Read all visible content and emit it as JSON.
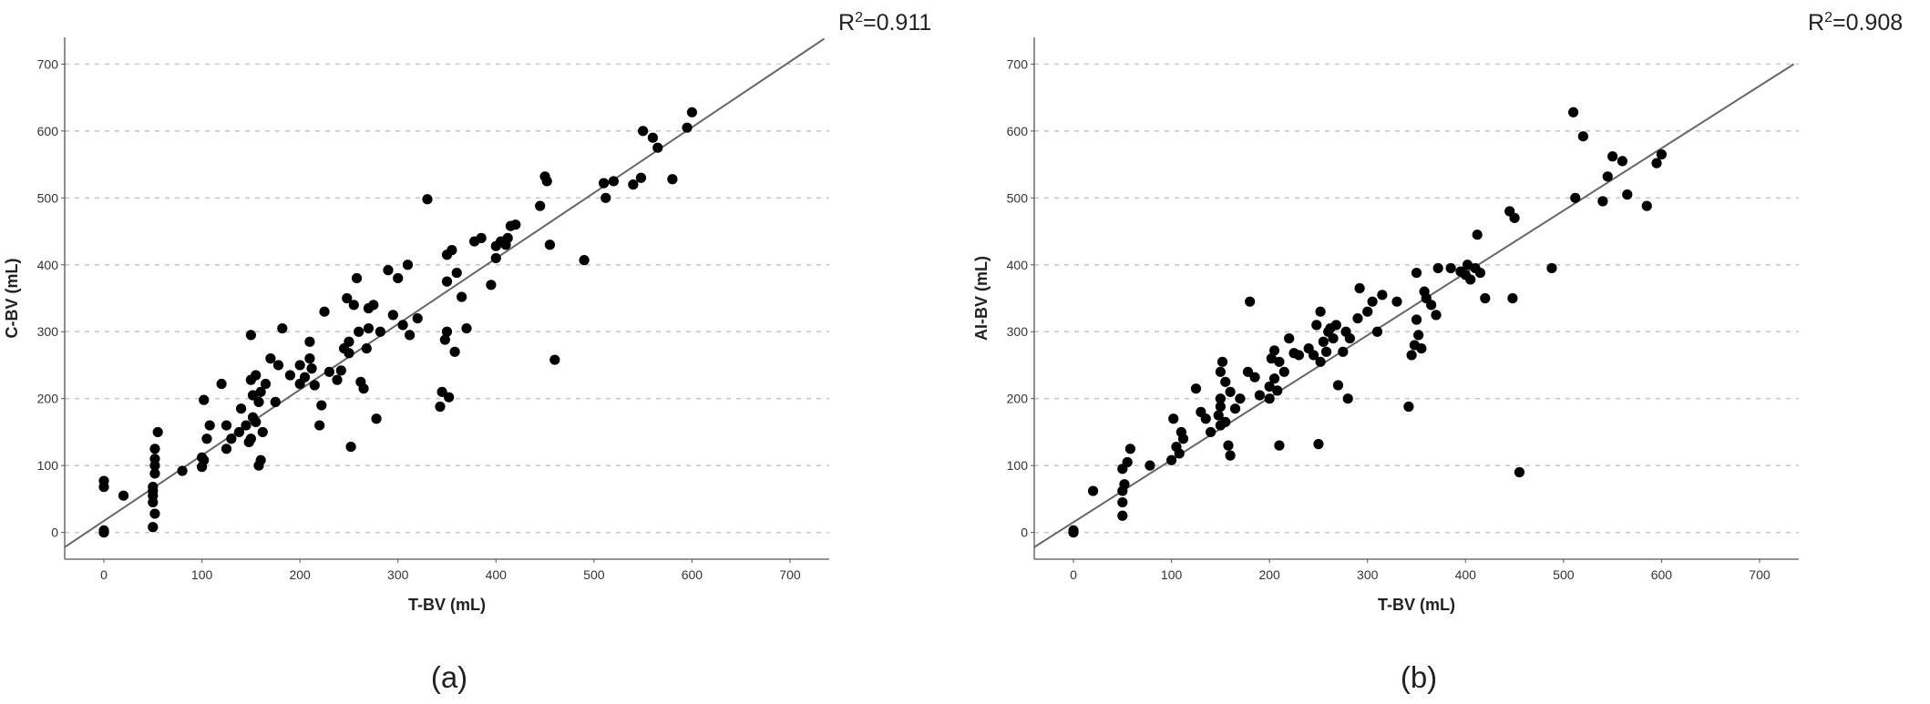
{
  "chart_data": [
    {
      "type": "scatter",
      "panel_label": "(a)",
      "xlabel": "T-BV (mL)",
      "ylabel": "C-BV (mL)",
      "xlim": [
        -40,
        740
      ],
      "ylim": [
        -40,
        740
      ],
      "xticks": [
        0,
        100,
        200,
        300,
        400,
        500,
        600,
        700
      ],
      "yticks": [
        0,
        100,
        200,
        300,
        400,
        500,
        600,
        700
      ],
      "grid": "horizontal-dashed",
      "annotation": {
        "prefix": "R",
        "sup": "2",
        "value": "=0.911"
      },
      "fit_line": {
        "x": [
          -40,
          735
        ],
        "y": [
          -22,
          738
        ]
      },
      "points": [
        [
          0,
          0
        ],
        [
          0,
          3
        ],
        [
          0,
          68
        ],
        [
          0,
          77
        ],
        [
          20,
          55
        ],
        [
          50,
          8
        ],
        [
          50,
          45
        ],
        [
          50,
          55
        ],
        [
          50,
          62
        ],
        [
          50,
          68
        ],
        [
          52,
          28
        ],
        [
          52,
          88
        ],
        [
          52,
          100
        ],
        [
          52,
          110
        ],
        [
          52,
          125
        ],
        [
          55,
          150
        ],
        [
          80,
          92
        ],
        [
          100,
          98
        ],
        [
          100,
          112
        ],
        [
          102,
          108
        ],
        [
          102,
          198
        ],
        [
          105,
          140
        ],
        [
          108,
          160
        ],
        [
          120,
          222
        ],
        [
          125,
          125
        ],
        [
          125,
          160
        ],
        [
          130,
          140
        ],
        [
          138,
          150
        ],
        [
          140,
          185
        ],
        [
          145,
          160
        ],
        [
          148,
          135
        ],
        [
          150,
          140
        ],
        [
          150,
          228
        ],
        [
          150,
          295
        ],
        [
          152,
          205
        ],
        [
          152,
          172
        ],
        [
          155,
          165
        ],
        [
          155,
          235
        ],
        [
          158,
          100
        ],
        [
          158,
          195
        ],
        [
          160,
          108
        ],
        [
          160,
          210
        ],
        [
          162,
          150
        ],
        [
          165,
          222
        ],
        [
          170,
          260
        ],
        [
          175,
          195
        ],
        [
          178,
          250
        ],
        [
          182,
          305
        ],
        [
          190,
          235
        ],
        [
          200,
          222
        ],
        [
          200,
          250
        ],
        [
          205,
          232
        ],
        [
          210,
          260
        ],
        [
          210,
          285
        ],
        [
          212,
          245
        ],
        [
          215,
          220
        ],
        [
          220,
          160
        ],
        [
          222,
          190
        ],
        [
          225,
          330
        ],
        [
          230,
          240
        ],
        [
          238,
          228
        ],
        [
          242,
          242
        ],
        [
          245,
          275
        ],
        [
          248,
          350
        ],
        [
          250,
          268
        ],
        [
          250,
          285
        ],
        [
          252,
          128
        ],
        [
          255,
          340
        ],
        [
          258,
          380
        ],
        [
          260,
          300
        ],
        [
          262,
          225
        ],
        [
          265,
          215
        ],
        [
          268,
          275
        ],
        [
          270,
          305
        ],
        [
          270,
          335
        ],
        [
          275,
          340
        ],
        [
          278,
          170
        ],
        [
          282,
          300
        ],
        [
          290,
          392
        ],
        [
          295,
          325
        ],
        [
          300,
          380
        ],
        [
          305,
          310
        ],
        [
          310,
          400
        ],
        [
          312,
          295
        ],
        [
          320,
          320
        ],
        [
          330,
          498
        ],
        [
          343,
          188
        ],
        [
          345,
          210
        ],
        [
          348,
          288
        ],
        [
          350,
          300
        ],
        [
          350,
          375
        ],
        [
          350,
          415
        ],
        [
          352,
          202
        ],
        [
          355,
          422
        ],
        [
          358,
          270
        ],
        [
          360,
          388
        ],
        [
          365,
          352
        ],
        [
          370,
          305
        ],
        [
          378,
          435
        ],
        [
          385,
          440
        ],
        [
          395,
          370
        ],
        [
          400,
          410
        ],
        [
          400,
          428
        ],
        [
          405,
          435
        ],
        [
          410,
          430
        ],
        [
          412,
          440
        ],
        [
          415,
          458
        ],
        [
          420,
          460
        ],
        [
          445,
          488
        ],
        [
          450,
          532
        ],
        [
          452,
          525
        ],
        [
          455,
          430
        ],
        [
          460,
          258
        ],
        [
          490,
          407
        ],
        [
          510,
          522
        ],
        [
          512,
          500
        ],
        [
          520,
          525
        ],
        [
          540,
          520
        ],
        [
          548,
          530
        ],
        [
          550,
          600
        ],
        [
          560,
          590
        ],
        [
          565,
          575
        ],
        [
          580,
          528
        ],
        [
          595,
          605
        ],
        [
          600,
          628
        ]
      ]
    },
    {
      "type": "scatter",
      "panel_label": "(b)",
      "xlabel": "T-BV (mL)",
      "ylabel": "AI-BV (mL)",
      "xlim": [
        -40,
        740
      ],
      "ylim": [
        -40,
        740
      ],
      "xticks": [
        0,
        100,
        200,
        300,
        400,
        500,
        600,
        700
      ],
      "yticks": [
        0,
        100,
        200,
        300,
        400,
        500,
        600,
        700
      ],
      "grid": "horizontal-dashed",
      "annotation": {
        "prefix": "R",
        "sup": "2",
        "value": "=0.908"
      },
      "fit_line": {
        "x": [
          -40,
          735
        ],
        "y": [
          -22,
          700
        ]
      },
      "points": [
        [
          0,
          0
        ],
        [
          0,
          3
        ],
        [
          20,
          62
        ],
        [
          50,
          25
        ],
        [
          50,
          45
        ],
        [
          50,
          62
        ],
        [
          50,
          95
        ],
        [
          52,
          72
        ],
        [
          55,
          105
        ],
        [
          58,
          125
        ],
        [
          78,
          100
        ],
        [
          100,
          108
        ],
        [
          102,
          170
        ],
        [
          105,
          128
        ],
        [
          108,
          118
        ],
        [
          110,
          150
        ],
        [
          112,
          140
        ],
        [
          125,
          215
        ],
        [
          130,
          180
        ],
        [
          135,
          170
        ],
        [
          140,
          150
        ],
        [
          148,
          175
        ],
        [
          150,
          160
        ],
        [
          150,
          188
        ],
        [
          150,
          200
        ],
        [
          150,
          240
        ],
        [
          152,
          255
        ],
        [
          155,
          165
        ],
        [
          155,
          225
        ],
        [
          158,
          130
        ],
        [
          160,
          115
        ],
        [
          160,
          210
        ],
        [
          165,
          185
        ],
        [
          170,
          200
        ],
        [
          178,
          240
        ],
        [
          180,
          345
        ],
        [
          185,
          232
        ],
        [
          190,
          205
        ],
        [
          200,
          200
        ],
        [
          200,
          218
        ],
        [
          202,
          260
        ],
        [
          205,
          272
        ],
        [
          205,
          230
        ],
        [
          208,
          212
        ],
        [
          210,
          130
        ],
        [
          210,
          255
        ],
        [
          215,
          240
        ],
        [
          220,
          290
        ],
        [
          225,
          268
        ],
        [
          230,
          265
        ],
        [
          240,
          275
        ],
        [
          245,
          265
        ],
        [
          248,
          310
        ],
        [
          250,
          132
        ],
        [
          252,
          255
        ],
        [
          252,
          330
        ],
        [
          255,
          285
        ],
        [
          258,
          270
        ],
        [
          260,
          300
        ],
        [
          262,
          305
        ],
        [
          265,
          290
        ],
        [
          268,
          310
        ],
        [
          270,
          220
        ],
        [
          275,
          270
        ],
        [
          278,
          300
        ],
        [
          280,
          200
        ],
        [
          282,
          290
        ],
        [
          290,
          320
        ],
        [
          292,
          365
        ],
        [
          300,
          330
        ],
        [
          305,
          345
        ],
        [
          310,
          300
        ],
        [
          315,
          355
        ],
        [
          330,
          345
        ],
        [
          342,
          188
        ],
        [
          345,
          265
        ],
        [
          348,
          280
        ],
        [
          350,
          318
        ],
        [
          350,
          388
        ],
        [
          352,
          295
        ],
        [
          355,
          275
        ],
        [
          358,
          360
        ],
        [
          360,
          350
        ],
        [
          365,
          340
        ],
        [
          370,
          325
        ],
        [
          372,
          395
        ],
        [
          385,
          395
        ],
        [
          395,
          390
        ],
        [
          400,
          385
        ],
        [
          402,
          400
        ],
        [
          405,
          378
        ],
        [
          410,
          395
        ],
        [
          412,
          445
        ],
        [
          415,
          388
        ],
        [
          420,
          350
        ],
        [
          445,
          480
        ],
        [
          448,
          350
        ],
        [
          450,
          470
        ],
        [
          455,
          90
        ],
        [
          488,
          395
        ],
        [
          510,
          628
        ],
        [
          512,
          500
        ],
        [
          520,
          592
        ],
        [
          540,
          495
        ],
        [
          545,
          532
        ],
        [
          550,
          562
        ],
        [
          560,
          555
        ],
        [
          565,
          505
        ],
        [
          585,
          488
        ],
        [
          595,
          552
        ],
        [
          600,
          565
        ]
      ]
    }
  ]
}
